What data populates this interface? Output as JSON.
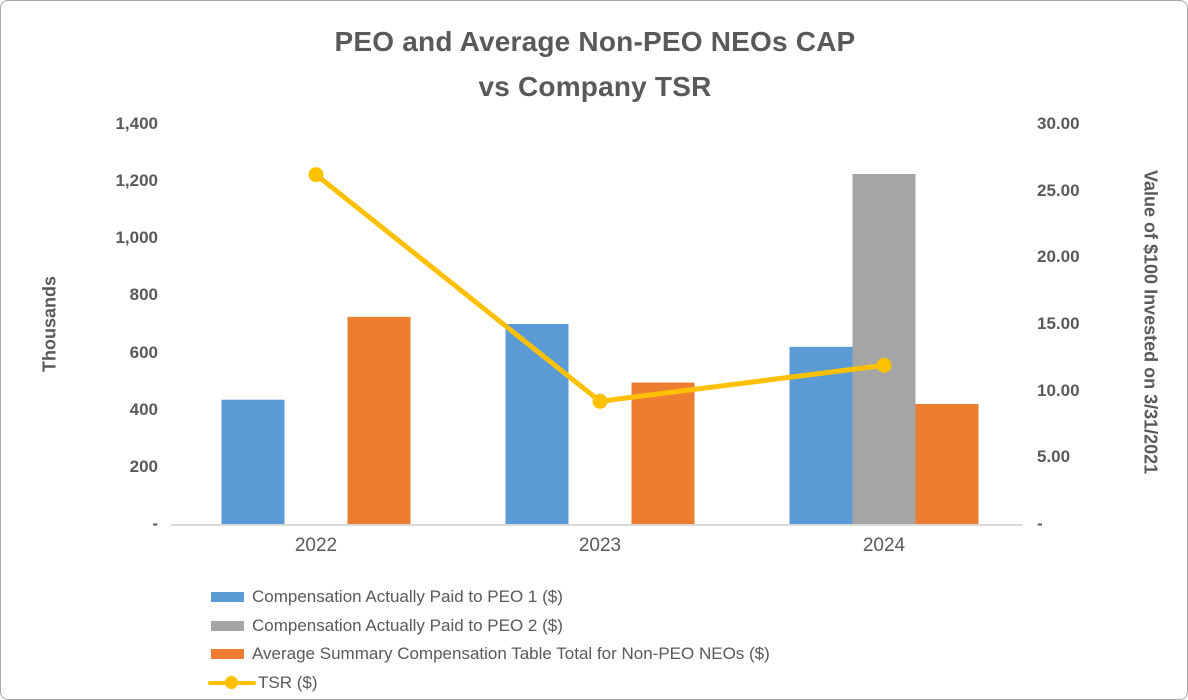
{
  "title": {
    "text": "PEO and Average Non-PEO NEOs CAP vs Company TSR",
    "line1": "PEO and Average Non-PEO NEOs CAP",
    "line2": "vs Company TSR"
  },
  "chart_data": {
    "type": "bar+line combo",
    "title": "PEO and Average Non-PEO NEOs CAP vs Company TSR",
    "categories": [
      "2022",
      "2023",
      "2024"
    ],
    "series": [
      {
        "name": "Compensation Actually Paid to PEO 1 ($)",
        "type": "bar",
        "axis": "left",
        "color": "#5B9BD5",
        "values": [
          435,
          700,
          620
        ]
      },
      {
        "name": "Compensation Actually Paid to PEO 2 ($)",
        "type": "bar",
        "axis": "left",
        "color": "#A5A5A5",
        "values": [
          null,
          null,
          1225
        ]
      },
      {
        "name": "Average Summary Compensation Table Total for Non-PEO NEOs ($)",
        "type": "bar",
        "axis": "left",
        "color": "#ED7D31",
        "values": [
          725,
          495,
          420
        ]
      },
      {
        "name": "TSR ($)",
        "type": "line",
        "axis": "right",
        "color": "#FFC000",
        "values": [
          26.2,
          9.2,
          11.9
        ]
      }
    ],
    "left_axis": {
      "title": "Thousands",
      "min": 0,
      "max": 1400,
      "tick_labels": [
        "1,400",
        "1,200",
        "1,000",
        "800",
        "600",
        "400",
        "200",
        "-"
      ],
      "tick_values": [
        1400,
        1200,
        1000,
        800,
        600,
        400,
        200,
        0
      ]
    },
    "right_axis": {
      "title": "Value of $100 Invested on 3/31/2021",
      "min": 0,
      "max": 30,
      "tick_labels": [
        "30.00",
        "25.00",
        "20.00",
        "15.00",
        "10.00",
        "5.00",
        "-"
      ],
      "tick_values": [
        30,
        25,
        20,
        15,
        10,
        5,
        0
      ]
    },
    "grid": false,
    "legend_position": "bottom-left"
  },
  "colors": {
    "text": "#595959",
    "axis_line": "#D9D9D9",
    "border": "#A9A9A9",
    "background": "#FFFFFF",
    "peo1_blue": "#5B9BD5",
    "peo2_gray": "#A5A5A5",
    "non_peo_orange": "#ED7D31",
    "tsr_yellow": "#FFC000"
  }
}
